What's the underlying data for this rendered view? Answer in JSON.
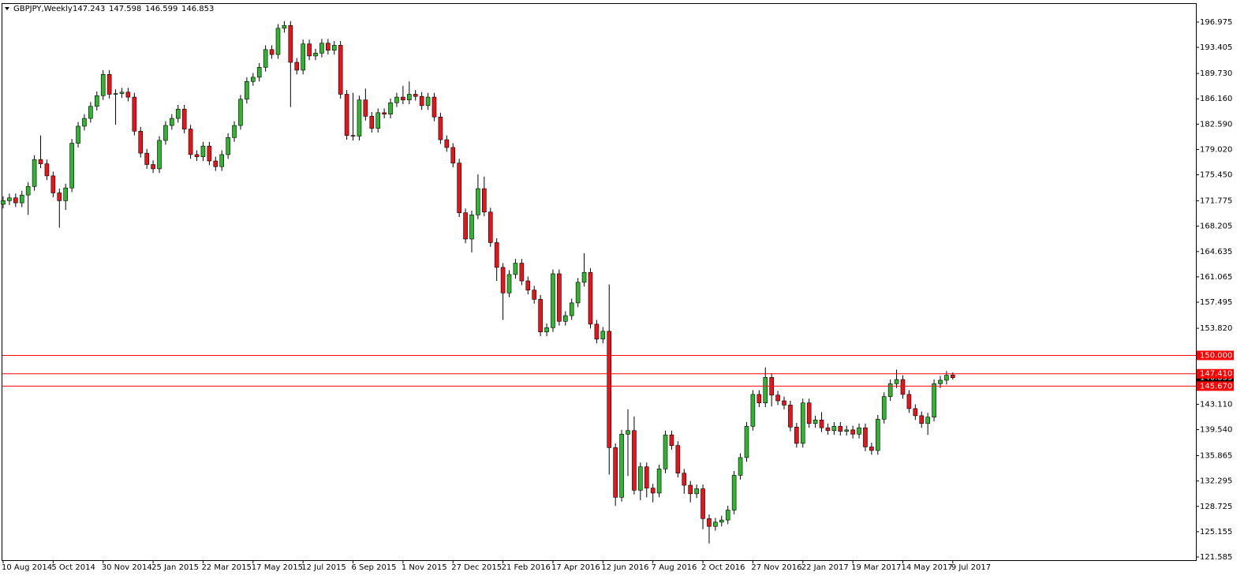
{
  "chart_data": {
    "type": "candlestick",
    "title": "GBPJPY,Weekly",
    "up_color": "#2fb52f",
    "down_color": "#e8141a",
    "line_color": "#ff0000",
    "categories": [
      "10 Aug 2014",
      null,
      null,
      null,
      null,
      null,
      null,
      null,
      "5 Oct 2014",
      null,
      null,
      null,
      null,
      null,
      null,
      null,
      "30 Nov 2014",
      null,
      null,
      null,
      null,
      null,
      null,
      null,
      "25 Jan 2015",
      null,
      null,
      null,
      null,
      null,
      null,
      null,
      "22 Mar 2015",
      null,
      null,
      null,
      null,
      null,
      null,
      null,
      "17 May 2015",
      null,
      null,
      null,
      null,
      null,
      null,
      null,
      "12 Jul 2015",
      null,
      null,
      null,
      null,
      null,
      null,
      null,
      "6 Sep 2015",
      null,
      null,
      null,
      null,
      null,
      null,
      null,
      "1 Nov 2015",
      null,
      null,
      null,
      null,
      null,
      null,
      null,
      "27 Dec 2015",
      null,
      null,
      null,
      null,
      null,
      null,
      null,
      "21 Feb 2016",
      null,
      null,
      null,
      null,
      null,
      null,
      null,
      "17 Apr 2016",
      null,
      null,
      null,
      null,
      null,
      null,
      null,
      "12 Jun 2016",
      null,
      null,
      null,
      null,
      null,
      null,
      null,
      "7 Aug 2016",
      null,
      null,
      null,
      null,
      null,
      null,
      null,
      "2 Oct 2016",
      null,
      null,
      null,
      null,
      null,
      null,
      null,
      "27 Nov 2016",
      null,
      null,
      null,
      null,
      null,
      null,
      null,
      "22 Jan 2017",
      null,
      null,
      null,
      null,
      null,
      null,
      null,
      "19 Mar 2017",
      null,
      null,
      null,
      null,
      null,
      null,
      null,
      "14 May 2017",
      null,
      null,
      null,
      null,
      null,
      null,
      null,
      "9 Jul 2017"
    ],
    "open": [
      171.3,
      171.8,
      172.2,
      171.5,
      172.6,
      173.8,
      177.6,
      177.0,
      175.3,
      172.9,
      171.8,
      173.6,
      179.9,
      182.3,
      183.4,
      185.1,
      186.6,
      189.6,
      186.8,
      186.9,
      187.1,
      186.4,
      181.6,
      178.5,
      176.9,
      176.3,
      180.3,
      182.4,
      183.4,
      184.7,
      181.9,
      178.3,
      178.0,
      179.5,
      177.4,
      176.6,
      178.3,
      180.7,
      182.4,
      186.1,
      188.6,
      189.2,
      190.6,
      193.1,
      192.4,
      196.1,
      196.5,
      191.3,
      190.2,
      193.9,
      192.2,
      192.6,
      194.0,
      193.0,
      193.7,
      186.8,
      181.0,
      180.9,
      186.0,
      183.7,
      182.0,
      184.2,
      184.0,
      185.6,
      186.4,
      186.0,
      186.8,
      186.5,
      185.2,
      186.4,
      183.6,
      180.4,
      179.3,
      177.1,
      170.1,
      166.4,
      169.8,
      173.5,
      170.2,
      165.9,
      162.4,
      158.8,
      161.4,
      163.0,
      160.5,
      159.2,
      157.9,
      153.3,
      153.9,
      161.5,
      154.8,
      155.6,
      157.4,
      160.3,
      161.7,
      154.4,
      152.3,
      153.4,
      137.0,
      130.0,
      138.9,
      139.4,
      131.0,
      134.3,
      131.3,
      130.6,
      134.0,
      138.8,
      137.3,
      133.4,
      131.7,
      130.5,
      131.2,
      127.0,
      125.9,
      126.5,
      126.8,
      128.2,
      133.1,
      135.6,
      140.0,
      144.5,
      143.3,
      146.9,
      144.4,
      143.6,
      143.0,
      139.9,
      137.6,
      143.3,
      140.4,
      140.9,
      139.8,
      139.4,
      140.0,
      139.3,
      139.5,
      138.9,
      139.8,
      137.1,
      136.6,
      141.0,
      144.2,
      146.0,
      146.6,
      144.5,
      142.5,
      141.5,
      140.4,
      141.3,
      146.0,
      146.5,
      147.243
    ],
    "high": [
      172.4,
      172.8,
      172.8,
      173.2,
      174.4,
      178.2,
      181.0,
      177.6,
      175.9,
      173.5,
      174.2,
      180.5,
      182.9,
      184.0,
      185.7,
      187.2,
      190.2,
      190.2,
      187.5,
      187.7,
      187.7,
      187.0,
      182.2,
      179.1,
      177.5,
      180.9,
      183.0,
      184.0,
      185.3,
      185.3,
      182.5,
      178.9,
      180.1,
      180.1,
      178.0,
      178.9,
      181.3,
      183.0,
      186.7,
      189.2,
      189.8,
      191.2,
      193.7,
      193.7,
      196.7,
      197.1,
      197.1,
      191.9,
      194.5,
      194.5,
      193.2,
      194.6,
      194.6,
      194.3,
      194.3,
      187.4,
      187.0,
      186.6,
      187.6,
      184.3,
      184.8,
      184.8,
      186.2,
      187.0,
      188.0,
      188.6,
      187.4,
      187.1,
      187.0,
      187.0,
      184.2,
      181.0,
      179.9,
      177.7,
      170.7,
      170.4,
      175.5,
      175.2,
      170.8,
      166.5,
      163.0,
      162.0,
      163.6,
      163.6,
      161.1,
      159.8,
      158.5,
      154.5,
      162.1,
      162.1,
      156.2,
      158.0,
      160.9,
      164.4,
      162.3,
      155.0,
      154.0,
      160.0,
      137.6,
      139.5,
      142.4,
      141.4,
      134.9,
      134.9,
      131.9,
      134.6,
      139.4,
      139.4,
      137.9,
      134.0,
      132.3,
      131.8,
      131.8,
      127.6,
      127.1,
      127.4,
      128.8,
      133.7,
      136.2,
      140.6,
      145.1,
      145.1,
      148.3,
      147.5,
      145.0,
      144.2,
      143.6,
      140.5,
      143.9,
      143.9,
      141.5,
      142.0,
      140.4,
      140.6,
      140.6,
      140.1,
      140.1,
      140.4,
      140.4,
      137.7,
      141.6,
      144.8,
      146.6,
      148.0,
      147.2,
      145.1,
      143.1,
      142.1,
      141.9,
      146.6,
      147.1,
      147.8,
      147.598
    ],
    "low": [
      170.7,
      171.2,
      170.9,
      170.9,
      169.8,
      173.2,
      176.4,
      174.7,
      172.3,
      168.0,
      170.5,
      173.0,
      179.3,
      181.7,
      182.8,
      184.5,
      186.0,
      186.2,
      182.5,
      186.3,
      185.8,
      181.0,
      177.9,
      176.3,
      175.7,
      175.7,
      179.7,
      181.8,
      182.8,
      181.3,
      177.7,
      177.4,
      177.4,
      176.8,
      176.0,
      176.0,
      177.7,
      180.1,
      181.8,
      185.5,
      188.0,
      188.6,
      190.0,
      191.8,
      191.8,
      195.5,
      185.0,
      189.6,
      189.6,
      191.6,
      191.6,
      192.0,
      192.4,
      192.4,
      186.2,
      180.4,
      180.3,
      180.3,
      183.1,
      181.4,
      181.4,
      183.4,
      183.4,
      185.0,
      185.4,
      185.4,
      185.9,
      184.6,
      184.6,
      183.0,
      179.8,
      178.7,
      176.5,
      169.5,
      165.8,
      164.5,
      169.2,
      169.6,
      165.3,
      160.5,
      155.0,
      158.2,
      160.8,
      159.9,
      158.6,
      157.3,
      152.7,
      152.7,
      153.3,
      154.2,
      154.2,
      155.0,
      156.8,
      159.7,
      153.8,
      151.7,
      151.7,
      133.2,
      128.8,
      129.4,
      133.0,
      130.4,
      129.6,
      130.0,
      129.3,
      130.0,
      133.4,
      136.7,
      132.8,
      130.5,
      129.3,
      129.9,
      125.5,
      123.5,
      125.3,
      125.9,
      126.2,
      127.6,
      132.5,
      135.0,
      139.4,
      142.7,
      142.7,
      142.8,
      143.0,
      142.4,
      139.3,
      137.0,
      137.0,
      139.8,
      139.8,
      139.2,
      138.8,
      138.8,
      138.7,
      138.7,
      138.3,
      138.3,
      136.5,
      136.0,
      136.0,
      140.4,
      143.6,
      145.4,
      143.9,
      141.9,
      140.9,
      139.8,
      138.8,
      140.7,
      145.4,
      145.9,
      146.599
    ],
    "close": [
      171.8,
      172.2,
      171.5,
      172.6,
      173.8,
      177.6,
      177.0,
      175.3,
      172.9,
      171.8,
      173.6,
      179.9,
      182.3,
      183.4,
      185.1,
      186.6,
      189.6,
      186.8,
      186.9,
      187.1,
      186.4,
      181.6,
      178.5,
      176.9,
      176.3,
      180.3,
      182.4,
      183.4,
      184.7,
      181.9,
      178.3,
      178.0,
      179.5,
      177.4,
      176.6,
      178.3,
      180.7,
      182.4,
      186.1,
      188.6,
      189.2,
      190.6,
      193.1,
      192.4,
      196.1,
      196.5,
      191.3,
      190.2,
      193.9,
      192.2,
      192.6,
      194.0,
      193.0,
      193.7,
      186.8,
      181.0,
      180.9,
      186.0,
      183.7,
      182.0,
      184.2,
      184.0,
      185.6,
      186.4,
      186.0,
      186.8,
      186.5,
      185.2,
      186.4,
      183.6,
      180.4,
      179.3,
      177.1,
      170.1,
      166.4,
      169.8,
      173.5,
      170.2,
      165.9,
      162.4,
      158.8,
      161.4,
      163.0,
      160.5,
      159.2,
      157.9,
      153.3,
      153.9,
      161.5,
      154.8,
      155.6,
      157.4,
      160.3,
      161.7,
      154.4,
      152.3,
      153.4,
      137.0,
      130.0,
      138.9,
      139.4,
      131.0,
      134.3,
      131.3,
      130.6,
      134.0,
      138.8,
      137.3,
      133.4,
      131.7,
      130.5,
      131.2,
      127.0,
      125.9,
      126.5,
      126.8,
      128.2,
      133.1,
      135.6,
      140.0,
      144.5,
      143.3,
      146.9,
      144.4,
      143.6,
      143.0,
      139.9,
      137.6,
      143.3,
      140.4,
      140.9,
      139.8,
      139.4,
      140.0,
      139.3,
      139.5,
      138.9,
      139.8,
      137.1,
      136.6,
      141.0,
      144.2,
      146.0,
      146.6,
      144.5,
      142.5,
      141.5,
      140.4,
      141.3,
      146.0,
      146.5,
      147.2,
      146.853
    ],
    "hlines": [
      {
        "value": 150,
        "label": "150.000"
      },
      {
        "value": 147.41,
        "label": "147.410"
      },
      {
        "value": 145.67,
        "label": "145.670"
      }
    ],
    "ylim": [
      121.14,
      199.64
    ],
    "yticks": [
      196.975,
      193.405,
      {
        "value": 189.73,
        "label": "189.730"
      },
      {
        "value": 186.16,
        "label": "186.160"
      },
      {
        "value": 182.59,
        "label": "182.590"
      },
      {
        "value": 179.02,
        "label": "179.020"
      },
      {
        "value": 175.45,
        "label": "175.450"
      },
      171.775,
      168.205,
      164.635,
      161.065,
      157.495,
      {
        "value": 153.82,
        "label": "153.820"
      },
      {
        "value": 143.11,
        "label": "143.110"
      },
      {
        "value": 139.54,
        "label": "139.540"
      },
      135.865,
      132.295,
      128.725,
      125.155,
      121.585
    ]
  }
}
